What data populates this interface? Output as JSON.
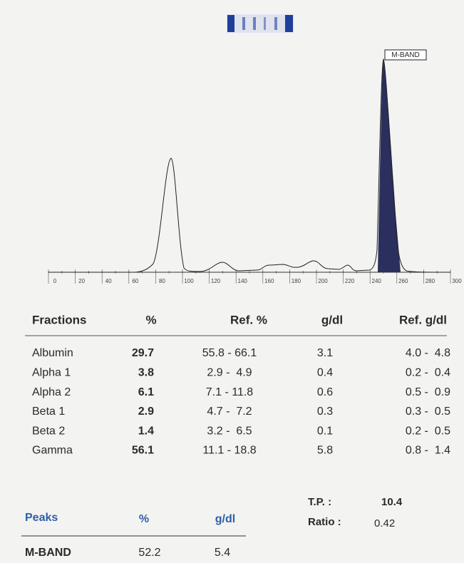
{
  "electropherogram": {
    "peak_label": "M-BAND",
    "xlim": [
      0,
      300
    ],
    "xticks": [
      0,
      20,
      40,
      60,
      80,
      100,
      120,
      140,
      160,
      180,
      200,
      220,
      240,
      260,
      280,
      300
    ]
  },
  "fractions_table": {
    "header": [
      "Fractions",
      "%",
      "Ref. %",
      "g/dl",
      "Ref. g/dl"
    ],
    "rows": [
      [
        "Albumin",
        "29.7",
        "55.8 - 66.1",
        "3.1",
        "4.0 -  4.8"
      ],
      [
        "Alpha 1",
        "3.8",
        "2.9 -  4.9",
        "0.4",
        "0.2 -  0.4"
      ],
      [
        "Alpha 2",
        "6.1",
        "7.1 - 11.8",
        "0.6",
        "0.5 -  0.9"
      ],
      [
        "Beta 1",
        "2.9",
        "4.7 -  7.2",
        "0.3",
        "0.3 -  0.5"
      ],
      [
        "Beta 2",
        "1.4",
        "3.2 -  6.5",
        "0.1",
        "0.2 -  0.5"
      ],
      [
        "Gamma",
        "56.1",
        "11.1 - 18.8",
        "5.8",
        "0.8 -  1.4"
      ]
    ]
  },
  "totals": {
    "tp_label": "T.P. :",
    "tp_value": "10.4",
    "ratio_label": "Ratio :",
    "ratio_value": "0.42"
  },
  "peaks_table": {
    "header": [
      "Peaks",
      "%",
      "g/dl"
    ],
    "rows": [
      [
        "M-BAND",
        "52.2",
        "5.4"
      ]
    ]
  }
}
